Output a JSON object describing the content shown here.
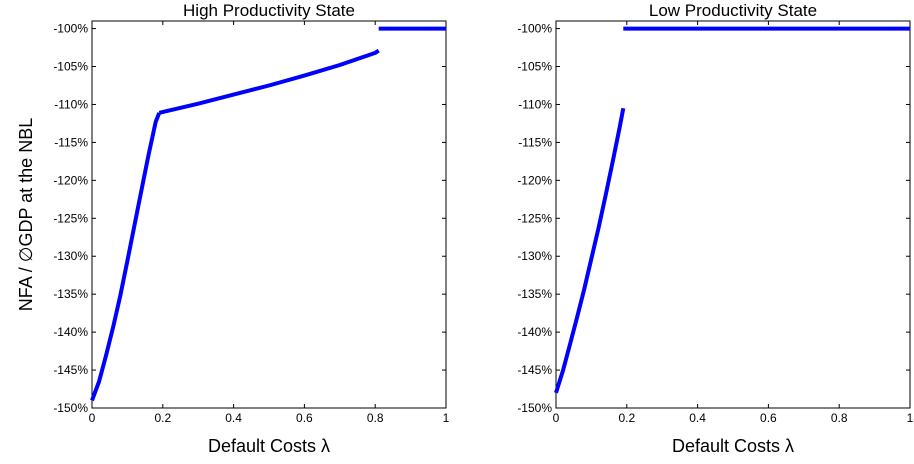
{
  "ylabel": "NFA / ∅GDP at the NBL",
  "chart_data": [
    {
      "type": "line",
      "title": "High Productivity State",
      "xlabel": "Default Costs λ",
      "xlim": [
        0,
        1
      ],
      "ylim": [
        -150,
        -99
      ],
      "x_ticks": [
        "0",
        "0.2",
        "0.4",
        "0.6",
        "0.8",
        "1"
      ],
      "y_ticks": [
        "-100%",
        "-105%",
        "-110%",
        "-115%",
        "-120%",
        "-125%",
        "-130%",
        "-135%",
        "-140%",
        "-145%",
        "-150%"
      ],
      "color": "#0000ff",
      "segments": [
        {
          "x": [
            0.0,
            0.02,
            0.04,
            0.06,
            0.08,
            0.1,
            0.12,
            0.14,
            0.16,
            0.18,
            0.19
          ],
          "y": [
            -149.0,
            -146.5,
            -143.0,
            -139.3,
            -135.2,
            -130.6,
            -125.9,
            -121.2,
            -116.6,
            -112.3,
            -111.1
          ]
        },
        {
          "x": [
            0.19,
            0.3,
            0.4,
            0.5,
            0.6,
            0.7,
            0.8,
            0.81
          ],
          "y": [
            -111.1,
            -109.9,
            -108.7,
            -107.5,
            -106.2,
            -104.8,
            -103.2,
            -102.9
          ]
        },
        {
          "x": [
            0.81,
            1.0
          ],
          "y": [
            -100.0,
            -100.0
          ]
        }
      ]
    },
    {
      "type": "line",
      "title": "Low Productivity State",
      "xlabel": "Default Costs λ",
      "xlim": [
        0,
        1
      ],
      "ylim": [
        -150,
        -99
      ],
      "x_ticks": [
        "0",
        "0.2",
        "0.4",
        "0.6",
        "0.8",
        "1"
      ],
      "y_ticks": [
        "-100%",
        "-105%",
        "-110%",
        "-115%",
        "-120%",
        "-125%",
        "-130%",
        "-135%",
        "-140%",
        "-145%",
        "-150%"
      ],
      "color": "#0000ff",
      "segments": [
        {
          "x": [
            0.0,
            0.02,
            0.04,
            0.06,
            0.08,
            0.1,
            0.12,
            0.14,
            0.16,
            0.18,
            0.19
          ],
          "y": [
            -148.0,
            -145.0,
            -141.5,
            -138.0,
            -134.3,
            -130.3,
            -126.3,
            -122.0,
            -117.6,
            -113.0,
            -110.5
          ]
        },
        {
          "x": [
            0.19,
            1.0
          ],
          "y": [
            -100.0,
            -100.0
          ]
        }
      ]
    }
  ]
}
